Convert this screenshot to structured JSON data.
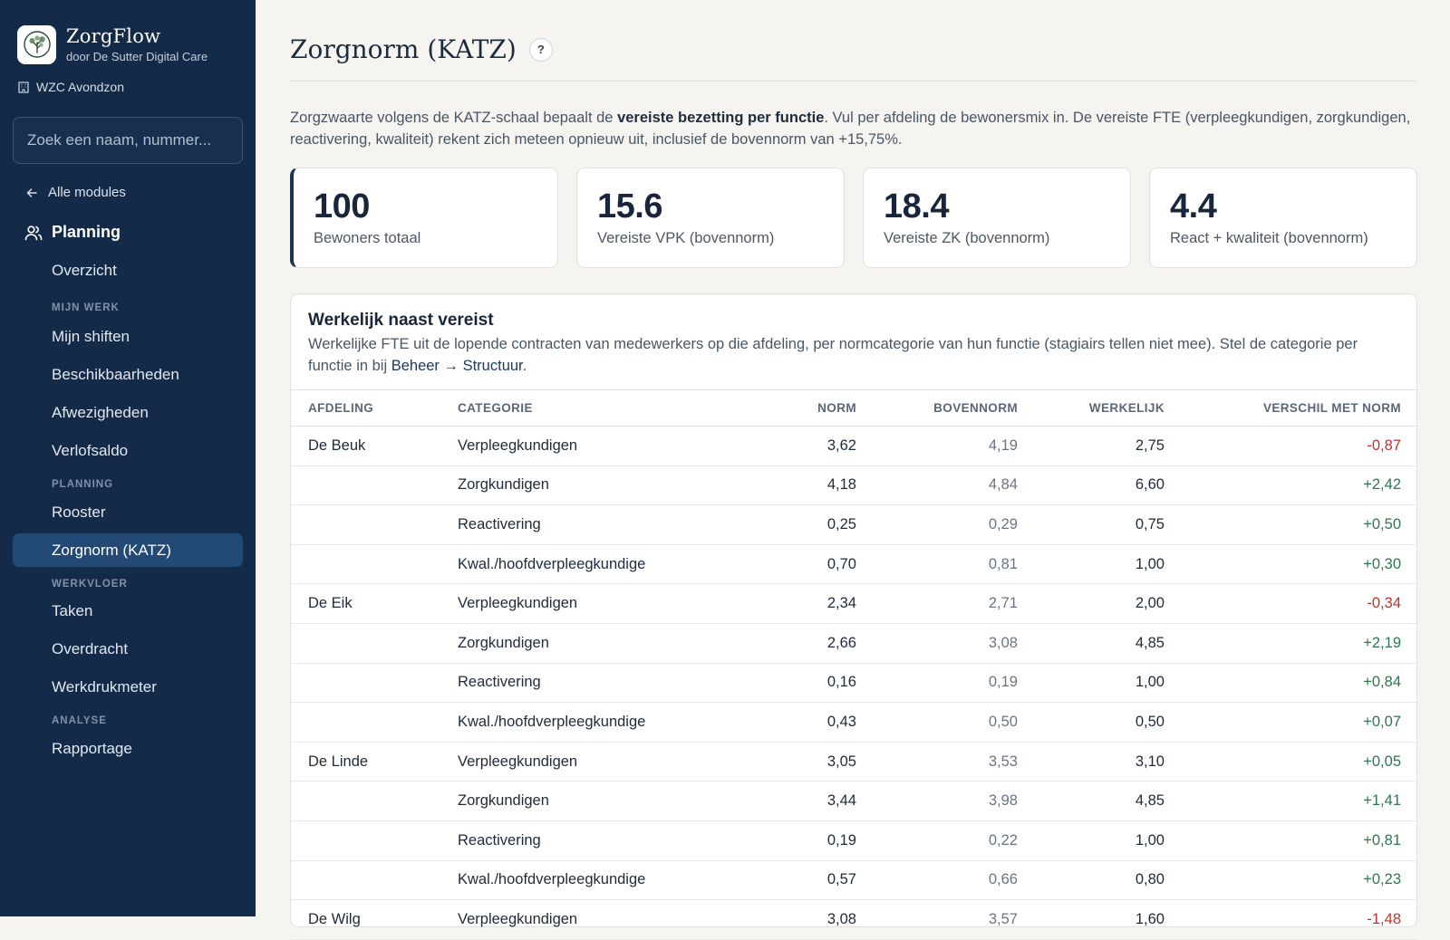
{
  "sidebar": {
    "brand": {
      "name": "ZorgFlow",
      "subtitle": "door De Sutter Digital Care"
    },
    "organization": "WZC Avondzon",
    "search_placeholder": "Zoek een naam, nummer...",
    "back_label": "Alle modules",
    "module_title": "Planning",
    "overview": "Overzicht",
    "sections": {
      "mijn_werk": "MIJN WERK",
      "planning": "PLANNING",
      "werkvloer": "WERKVLOER",
      "analyse": "ANALYSE"
    },
    "items": {
      "mijn_shiften": "Mijn shiften",
      "beschikbaarheden": "Beschikbaarheden",
      "afwezigheden": "Afwezigheden",
      "verlofsaldo": "Verlofsaldo",
      "rooster": "Rooster",
      "zorgnorm": "Zorgnorm (KATZ)",
      "taken": "Taken",
      "overdracht": "Overdracht",
      "werkdrukmeter": "Werkdrukmeter",
      "rapportage": "Rapportage"
    },
    "active_item": "Zorgnorm (KATZ)"
  },
  "page": {
    "title": "Zorgnorm (KATZ)",
    "help_label": "?",
    "intro_before": "Zorgzwaarte volgens de KATZ-schaal bepaalt de ",
    "intro_bold": "vereiste bezetting per functie",
    "intro_after": ". Vul per afdeling de bewonersmix in. De vereiste FTE (verpleegkundigen, zorgkundigen, reactivering, kwaliteit) rekent zich meteen opnieuw uit, inclusief de bovennorm van +15,75%."
  },
  "stats": [
    {
      "value": "100",
      "label": "Bewoners totaal"
    },
    {
      "value": "15.6",
      "label": "Vereiste VPK (bovennorm)"
    },
    {
      "value": "18.4",
      "label": "Vereiste ZK (bovennorm)"
    },
    {
      "value": "4.4",
      "label": "React + kwaliteit (bovennorm)"
    }
  ],
  "panel": {
    "title": "Werkelijk naast vereist",
    "desc_before": "Werkelijke FTE uit de lopende contracten van medewerkers op die afdeling, per normcategorie van hun functie (stagiairs tellen niet mee). Stel de categorie per functie in bij ",
    "desc_link": "Beheer → Structuur",
    "desc_after": "."
  },
  "table": {
    "headers": {
      "afdeling": "AFDELING",
      "categorie": "CATEGORIE",
      "norm": "NORM",
      "bovennorm": "BOVENNORM",
      "werkelijk": "WERKELIJK",
      "verschil": "VERSCHIL MET NORM"
    },
    "rows": [
      {
        "afdeling": "De Beuk",
        "categorie": "Verpleegkundigen",
        "norm": "3,62",
        "bovennorm": "4,19",
        "werkelijk": "2,75",
        "verschil": "-0,87"
      },
      {
        "afdeling": "",
        "categorie": "Zorgkundigen",
        "norm": "4,18",
        "bovennorm": "4,84",
        "werkelijk": "6,60",
        "verschil": "+2,42"
      },
      {
        "afdeling": "",
        "categorie": "Reactivering",
        "norm": "0,25",
        "bovennorm": "0,29",
        "werkelijk": "0,75",
        "verschil": "+0,50"
      },
      {
        "afdeling": "",
        "categorie": "Kwal./hoofdverpleegkundige",
        "norm": "0,70",
        "bovennorm": "0,81",
        "werkelijk": "1,00",
        "verschil": "+0,30"
      },
      {
        "afdeling": "De Eik",
        "categorie": "Verpleegkundigen",
        "norm": "2,34",
        "bovennorm": "2,71",
        "werkelijk": "2,00",
        "verschil": "-0,34"
      },
      {
        "afdeling": "",
        "categorie": "Zorgkundigen",
        "norm": "2,66",
        "bovennorm": "3,08",
        "werkelijk": "4,85",
        "verschil": "+2,19"
      },
      {
        "afdeling": "",
        "categorie": "Reactivering",
        "norm": "0,16",
        "bovennorm": "0,19",
        "werkelijk": "1,00",
        "verschil": "+0,84"
      },
      {
        "afdeling": "",
        "categorie": "Kwal./hoofdverpleegkundige",
        "norm": "0,43",
        "bovennorm": "0,50",
        "werkelijk": "0,50",
        "verschil": "+0,07"
      },
      {
        "afdeling": "De Linde",
        "categorie": "Verpleegkundigen",
        "norm": "3,05",
        "bovennorm": "3,53",
        "werkelijk": "3,10",
        "verschil": "+0,05"
      },
      {
        "afdeling": "",
        "categorie": "Zorgkundigen",
        "norm": "3,44",
        "bovennorm": "3,98",
        "werkelijk": "4,85",
        "verschil": "+1,41"
      },
      {
        "afdeling": "",
        "categorie": "Reactivering",
        "norm": "0,19",
        "bovennorm": "0,22",
        "werkelijk": "1,00",
        "verschil": "+0,81"
      },
      {
        "afdeling": "",
        "categorie": "Kwal./hoofdverpleegkundige",
        "norm": "0,57",
        "bovennorm": "0,66",
        "werkelijk": "0,80",
        "verschil": "+0,23"
      },
      {
        "afdeling": "De Wilg",
        "categorie": "Verpleegkundigen",
        "norm": "3,08",
        "bovennorm": "3,57",
        "werkelijk": "1,60",
        "verschil": "-1,48"
      }
    ]
  },
  "colors": {
    "sidebar_bg": "#132a49",
    "active_item_bg": "#234a77",
    "page_bg": "#f5f4f0",
    "negative": "#c0322f",
    "positive": "#2a7a4b"
  },
  "icons": {
    "brand": "tree-logo-icon",
    "organization": "building-icon",
    "back": "arrow-left-icon",
    "module": "users-icon"
  }
}
